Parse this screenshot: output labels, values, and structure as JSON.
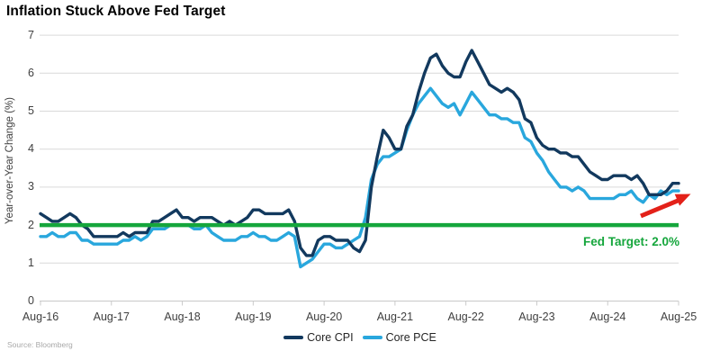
{
  "title": "Inflation Stuck Above Fed Target",
  "source": "Source: Bloomberg",
  "colors": {
    "core_cpi": "#12395E",
    "core_pce": "#29A7DD",
    "fed_green": "#15A63C",
    "arrow_red": "#E32119",
    "gridline": "#D9D9D9",
    "axis_line": "#C9C9C9",
    "tick_text": "#404040",
    "title_text": "#000000",
    "source_text": "#A8A8A8"
  },
  "chart_data": {
    "type": "line",
    "title": "Inflation Stuck Above Fed Target",
    "xlabel": "",
    "ylabel": "Year-over-Year Change (%)",
    "ylim": [
      0,
      7
    ],
    "y_ticks": [
      0,
      1,
      2,
      3,
      4,
      5,
      6,
      7
    ],
    "x_tick_labels": [
      "Aug-16",
      "Aug-17",
      "Aug-18",
      "Aug-19",
      "Aug-20",
      "Aug-21",
      "Aug-22",
      "Aug-23",
      "Aug-24",
      "Aug-25"
    ],
    "frequency": "monthly",
    "x_start": "Aug-2016",
    "x_end": "Aug-2025",
    "grid": "horizontal",
    "legend_position": "bottom-center",
    "reference_line": {
      "label": "Fed Target: 2.0%",
      "value": 2.0,
      "color": "#15A63C"
    },
    "annotation_arrow": {
      "color": "#E32119",
      "direction": "up-right",
      "near": "end of series above fed target line"
    },
    "series": [
      {
        "name": "Core CPI",
        "color": "#12395E",
        "values": [
          2.3,
          2.2,
          2.1,
          2.1,
          2.2,
          2.3,
          2.2,
          2.0,
          1.9,
          1.7,
          1.7,
          1.7,
          1.7,
          1.7,
          1.8,
          1.7,
          1.8,
          1.8,
          1.8,
          2.1,
          2.1,
          2.2,
          2.3,
          2.4,
          2.2,
          2.2,
          2.1,
          2.2,
          2.2,
          2.2,
          2.1,
          2.0,
          2.1,
          2.0,
          2.1,
          2.2,
          2.4,
          2.4,
          2.3,
          2.3,
          2.3,
          2.3,
          2.4,
          2.1,
          1.4,
          1.2,
          1.2,
          1.6,
          1.7,
          1.7,
          1.6,
          1.6,
          1.6,
          1.4,
          1.3,
          1.6,
          3.0,
          3.8,
          4.5,
          4.3,
          4.0,
          4.0,
          4.6,
          4.9,
          5.5,
          6.0,
          6.4,
          6.5,
          6.2,
          6.0,
          5.9,
          5.9,
          6.3,
          6.6,
          6.3,
          6.0,
          5.7,
          5.6,
          5.5,
          5.6,
          5.5,
          5.3,
          4.8,
          4.7,
          4.3,
          4.1,
          4.0,
          4.0,
          3.9,
          3.9,
          3.8,
          3.8,
          3.6,
          3.4,
          3.3,
          3.2,
          3.2,
          3.3,
          3.3,
          3.3,
          3.2,
          3.3,
          3.1,
          2.8,
          2.8,
          2.8,
          2.9,
          3.1,
          3.1
        ]
      },
      {
        "name": "Core PCE",
        "color": "#29A7DD",
        "values": [
          1.7,
          1.7,
          1.8,
          1.7,
          1.7,
          1.8,
          1.8,
          1.6,
          1.6,
          1.5,
          1.5,
          1.5,
          1.5,
          1.5,
          1.6,
          1.6,
          1.7,
          1.6,
          1.7,
          1.9,
          1.9,
          1.9,
          2.0,
          2.0,
          2.0,
          2.0,
          1.9,
          1.9,
          2.0,
          1.8,
          1.7,
          1.6,
          1.6,
          1.6,
          1.7,
          1.7,
          1.8,
          1.7,
          1.7,
          1.6,
          1.6,
          1.7,
          1.8,
          1.7,
          0.9,
          1.0,
          1.1,
          1.3,
          1.5,
          1.5,
          1.4,
          1.4,
          1.5,
          1.6,
          1.7,
          2.2,
          3.2,
          3.6,
          3.8,
          3.8,
          3.9,
          4.0,
          4.5,
          4.9,
          5.2,
          5.4,
          5.6,
          5.4,
          5.2,
          5.1,
          5.2,
          4.9,
          5.2,
          5.5,
          5.3,
          5.1,
          4.9,
          4.9,
          4.8,
          4.8,
          4.7,
          4.7,
          4.3,
          4.2,
          3.9,
          3.7,
          3.4,
          3.2,
          3.0,
          3.0,
          2.9,
          3.0,
          2.9,
          2.7,
          2.7,
          2.7,
          2.7,
          2.7,
          2.8,
          2.8,
          2.9,
          2.7,
          2.6,
          2.8,
          2.7,
          2.9,
          2.8,
          2.9,
          2.9
        ]
      }
    ]
  }
}
